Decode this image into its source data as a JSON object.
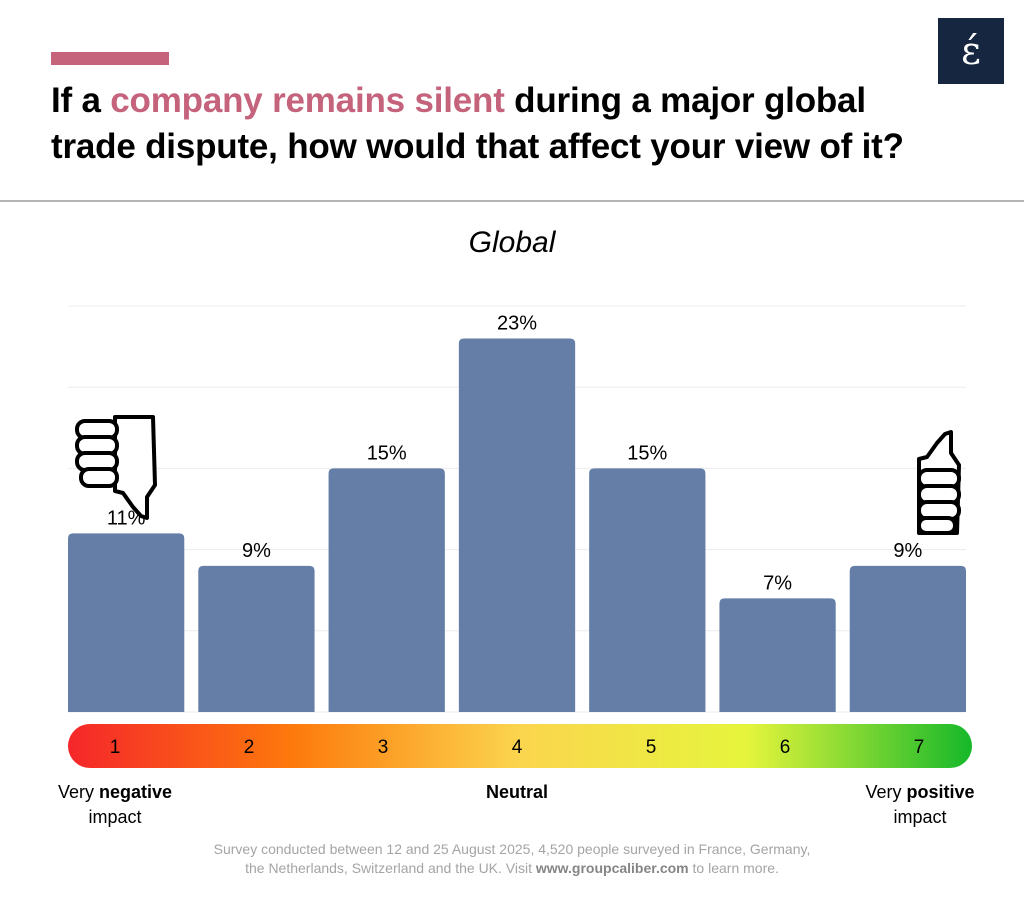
{
  "header": {
    "title_pre": "If a ",
    "title_highlight": "company remains silent",
    "title_post": " during a major global trade dispute, how would that affect your view of it?",
    "highlight_color": "#c4637b",
    "logo_glyph": "έ"
  },
  "chart_data": {
    "type": "bar",
    "title": "Global",
    "categories": [
      "1",
      "2",
      "3",
      "4",
      "5",
      "6",
      "7"
    ],
    "values": [
      11,
      9,
      15,
      23,
      15,
      7,
      9
    ],
    "data_labels": [
      "11%",
      "9%",
      "15%",
      "23%",
      "15%",
      "7%",
      "9%"
    ],
    "unit": "%",
    "ylim": [
      0,
      25
    ],
    "grid": true,
    "bar_color": "#647ea8",
    "scale_gradient": [
      "#f5262a",
      "#fd7a0c",
      "#fbd54e",
      "#e6f53c",
      "#16b82a"
    ]
  },
  "scale_labels": {
    "left_pre": "Very ",
    "left_bold": "negative",
    "left_post": "impact",
    "center": "Neutral",
    "right_pre": "Very ",
    "right_bold": "positive",
    "right_post": "impact"
  },
  "icons": {
    "left": "thumbs-down-icon",
    "right": "thumbs-up-icon"
  },
  "footnote": {
    "line1": "Survey conducted between 12 and 25 August 2025, 4,520 people surveyed in France, Germany,",
    "line2_pre": "the Netherlands, Switzerland and the UK. Visit ",
    "line2_link": "www.groupcaliber.com",
    "line2_post": " to learn more."
  }
}
